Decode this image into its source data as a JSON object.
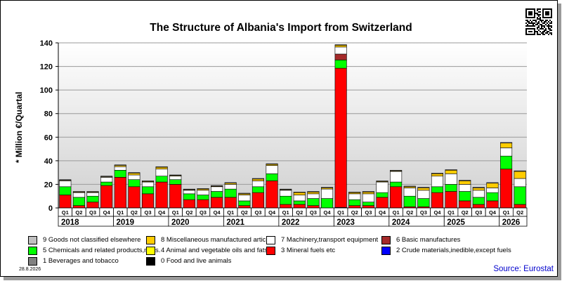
{
  "header": {
    "title": "The Structure of Albania's Import from Switzerland"
  },
  "footer": {
    "date": "28.8.2026",
    "source": "Source: Eurostat"
  },
  "chart_data": {
    "type": "bar",
    "stacked": true,
    "ylabel": "* Million €/Quartal",
    "ylim": [
      0,
      140
    ],
    "yticks": [
      0,
      20,
      40,
      60,
      80,
      100,
      120,
      140
    ],
    "grid": true,
    "background_gradient": [
      "#ffffff",
      "#d0d0d0"
    ],
    "categories": [
      "Q1",
      "Q2",
      "Q3",
      "Q4",
      "Q1",
      "Q2",
      "Q3",
      "Q4",
      "Q1",
      "Q2",
      "Q3",
      "Q4",
      "Q1",
      "Q2",
      "Q3",
      "Q4",
      "Q1",
      "Q2",
      "Q3",
      "Q4",
      "Q1",
      "Q2",
      "Q3",
      "Q4",
      "Q1",
      "Q2",
      "Q3",
      "Q4",
      "Q1",
      "Q2",
      "Q3",
      "Q4",
      "Q1",
      "Q2"
    ],
    "years": [
      {
        "label": "2018",
        "span": 4
      },
      {
        "label": "2019",
        "span": 4
      },
      {
        "label": "2020",
        "span": 4
      },
      {
        "label": "2021",
        "span": 4
      },
      {
        "label": "2022",
        "span": 4
      },
      {
        "label": "2023",
        "span": 4
      },
      {
        "label": "2024",
        "span": 4
      },
      {
        "label": "2025",
        "span": 4
      },
      {
        "label": "2026",
        "span": 2
      }
    ],
    "series": [
      {
        "name": "0 Food and live animals",
        "color": "#000000",
        "values": [
          0,
          0,
          0,
          0,
          0,
          0,
          0,
          0,
          0,
          0,
          0,
          0,
          0,
          0,
          0,
          0,
          0,
          0,
          0,
          0,
          0,
          0,
          0,
          0,
          0,
          0,
          0,
          0,
          0,
          0,
          0,
          0,
          0,
          0
        ]
      },
      {
        "name": "1 Beverages and tobacco",
        "color": "#808080",
        "values": [
          0,
          0,
          0,
          0,
          0,
          0,
          0,
          0,
          0,
          0,
          0,
          0,
          0,
          0,
          0,
          0,
          0,
          0,
          0,
          0,
          0,
          0,
          0,
          0,
          0,
          0,
          0,
          0,
          0,
          0,
          0,
          0,
          0,
          0
        ]
      },
      {
        "name": "2 Crude materials,inedible,except fuels",
        "color": "#0000ff",
        "values": [
          0,
          0,
          0,
          0,
          0,
          0,
          0,
          0,
          0,
          0,
          0,
          0,
          0,
          0,
          0,
          0,
          0,
          0,
          0,
          0,
          0.5,
          0,
          0,
          0,
          0,
          0,
          0,
          0,
          0,
          0,
          0,
          0,
          0,
          0
        ]
      },
      {
        "name": "3 Mineral fuels etc",
        "color": "#ff0000",
        "values": [
          11,
          2,
          5,
          19,
          26,
          18,
          12,
          22,
          20,
          7,
          7,
          9,
          9,
          2,
          13,
          23,
          3,
          3,
          2,
          0,
          118,
          2,
          2,
          9,
          18,
          1,
          1,
          13,
          14,
          6,
          3,
          6,
          33,
          3
        ]
      },
      {
        "name": "4 Animal and vegetable oils and fats",
        "color": "#ffff00",
        "values": [
          0,
          0,
          0,
          0,
          0,
          0,
          0,
          0,
          0,
          0,
          0,
          0,
          0,
          0,
          0,
          0,
          0,
          0,
          0,
          0,
          0,
          0,
          0,
          0,
          0,
          0,
          0,
          0,
          0,
          0,
          0,
          0,
          0,
          0
        ]
      },
      {
        "name": "5 Chemicals and related products,n.e.s.",
        "color": "#00ff00",
        "values": [
          7,
          7,
          5,
          3,
          6,
          6,
          6,
          5,
          4,
          5,
          4,
          5,
          7,
          4,
          5,
          6,
          7,
          3,
          6,
          8,
          7,
          5,
          3,
          4,
          4,
          9,
          7,
          5,
          6,
          8,
          6,
          7,
          11,
          15
        ]
      },
      {
        "name": "6 Basic manufactures",
        "color": "#a52a2a",
        "values": [
          0,
          0,
          0,
          0,
          0,
          0,
          0,
          0,
          0,
          0,
          0,
          0,
          0,
          0,
          0,
          0,
          0,
          0,
          0,
          0,
          5,
          0,
          0,
          0,
          0,
          0,
          0,
          0,
          0,
          0,
          0,
          0,
          0,
          0
        ]
      },
      {
        "name": "7 Machinery,transport equipment",
        "color": "#ffffff",
        "values": [
          5,
          4,
          3,
          4,
          3,
          4,
          4,
          6,
          3,
          3,
          4,
          4,
          4,
          5,
          5,
          7,
          5,
          5,
          4,
          8,
          6,
          5,
          7,
          9,
          9,
          7,
          7,
          9,
          9,
          6,
          6,
          4,
          7,
          7
        ]
      },
      {
        "name": "8 Miscellaneous manufactured articles",
        "color": "#ffcc00",
        "values": [
          0.5,
          0.5,
          0.5,
          0.5,
          1,
          1.5,
          0.5,
          1.5,
          0.5,
          0.5,
          1,
          0.5,
          1,
          1,
          1.5,
          1,
          0.5,
          2,
          1.5,
          1,
          1.5,
          1,
          1.5,
          0.5,
          0.5,
          1,
          2,
          2,
          3,
          3,
          2,
          4,
          4,
          6
        ]
      },
      {
        "name": "9 Goods not classified elsewhere",
        "color": "#c0c0c0",
        "values": [
          0.5,
          0.5,
          0.5,
          0.5,
          0.5,
          0.5,
          0.5,
          0.5,
          0.5,
          0.5,
          0.5,
          0.5,
          0.5,
          0.5,
          0.5,
          0.5,
          0.5,
          0.5,
          0.5,
          0.5,
          0.5,
          0.5,
          0.5,
          0.5,
          0.5,
          0.5,
          0.5,
          0.5,
          0.5,
          0.5,
          0.5,
          0.5,
          0.5,
          0.5
        ]
      }
    ],
    "legend_order": [
      "9 Goods not classified elsewhere",
      "8 Miscellaneous manufactured articles",
      "7 Machinery,transport equipment",
      "6 Basic manufactures",
      "5 Chemicals and related products,n.e.s.",
      "4 Animal and vegetable oils and fats",
      "3 Mineral fuels etc",
      "2 Crude materials,inedible,except fuels",
      "1 Beverages and tobacco",
      "0 Food and live animals"
    ],
    "legend_placement": "bottom"
  }
}
